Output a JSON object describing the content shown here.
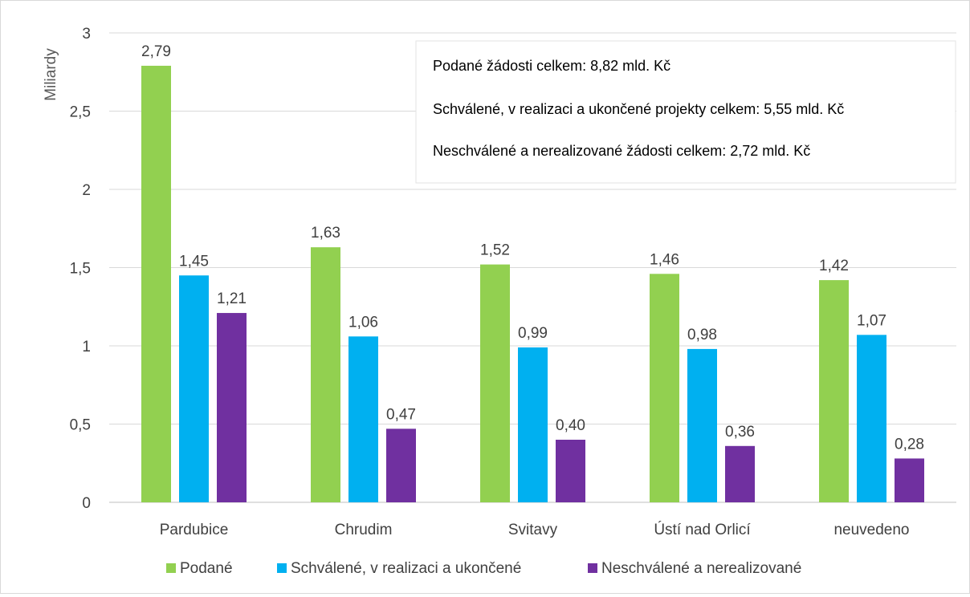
{
  "chart_data": {
    "type": "bar",
    "title": "",
    "xlabel": "",
    "ylabel": "Miliardy",
    "ylim": [
      0,
      3
    ],
    "yticks": [
      "0",
      "0,5",
      "1",
      "1,5",
      "2",
      "2,5",
      "3"
    ],
    "categories": [
      "Pardubice",
      "Chrudim",
      "Svitavy",
      "Ústí nad Orlicí",
      "neuvedeno"
    ],
    "series": [
      {
        "name": "Podané",
        "color": "#92d050",
        "values": [
          2.79,
          1.63,
          1.52,
          1.46,
          1.42
        ],
        "labels": [
          "2,79",
          "1,63",
          "1,52",
          "1,46",
          "1,42"
        ]
      },
      {
        "name": "Schválené, v realizaci a ukončené",
        "color": "#00b0f0",
        "values": [
          1.45,
          1.06,
          0.99,
          0.98,
          1.07
        ],
        "labels": [
          "1,45",
          "1,06",
          "0,99",
          "0,98",
          "1,07"
        ]
      },
      {
        "name": "Neschválené a nerealizované",
        "color": "#7030a0",
        "values": [
          1.21,
          0.47,
          0.4,
          0.36,
          0.28
        ],
        "labels": [
          "1,21",
          "0,47",
          "0,40",
          "0,36",
          "0,28"
        ]
      }
    ],
    "grid": true,
    "legend": "bottom",
    "annotations": [
      "Podané žádosti celkem: 8,82 mld. Kč",
      "Schválené, v realizaci a ukončené projekty celkem: 5,55 mld. Kč",
      "Neschválené a nerealizované žádosti celkem: 2,72 mld. Kč"
    ]
  }
}
